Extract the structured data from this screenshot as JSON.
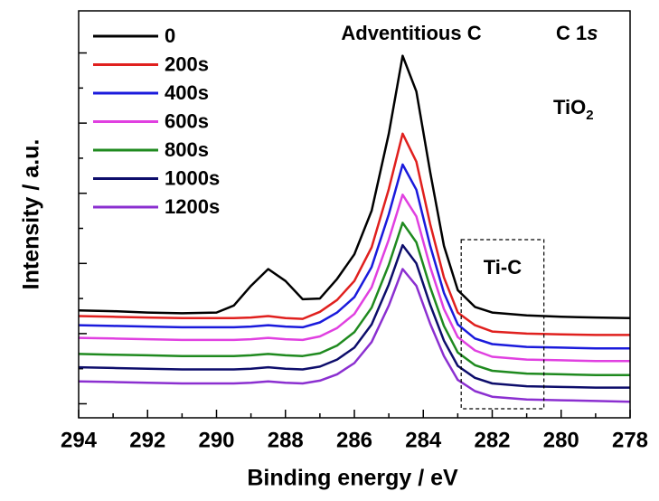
{
  "chart_data": {
    "type": "line",
    "xlabel": "Binding energy / eV",
    "ylabel": "Intensity / a.u.",
    "xlim": [
      294,
      278
    ],
    "xticks": [
      294,
      292,
      290,
      288,
      286,
      284,
      282,
      280,
      278
    ],
    "xminor": [
      293,
      291,
      289,
      287,
      285,
      283,
      281,
      279
    ],
    "ylim": [
      -0.2,
      5.6
    ],
    "yticks": [
      0,
      1,
      2,
      3,
      4,
      5
    ],
    "yminor": [
      0.5,
      1.5,
      2.5,
      3.5,
      4.5
    ],
    "x": [
      294,
      293,
      292,
      291,
      290,
      289.5,
      289,
      288.5,
      288,
      287.5,
      287,
      286.5,
      286,
      285.5,
      285,
      284.6,
      284.2,
      283.8,
      283.4,
      283,
      282.5,
      282,
      281,
      280,
      279,
      278
    ],
    "series": [
      {
        "name": "0",
        "color": "#000000",
        "values": [
          1.33,
          1.32,
          1.3,
          1.29,
          1.3,
          1.4,
          1.68,
          1.92,
          1.75,
          1.49,
          1.5,
          1.78,
          2.13,
          2.75,
          3.85,
          4.96,
          4.45,
          3.3,
          2.25,
          1.62,
          1.38,
          1.3,
          1.26,
          1.24,
          1.23,
          1.22
        ]
      },
      {
        "name": "200s",
        "color": "#e0201e",
        "values": [
          1.25,
          1.24,
          1.23,
          1.22,
          1.22,
          1.22,
          1.23,
          1.25,
          1.22,
          1.21,
          1.31,
          1.48,
          1.75,
          2.23,
          3.06,
          3.85,
          3.45,
          2.56,
          1.8,
          1.3,
          1.12,
          1.03,
          1.0,
          0.99,
          0.98,
          0.98
        ]
      },
      {
        "name": "400s",
        "color": "#1a1adc",
        "values": [
          1.12,
          1.11,
          1.1,
          1.09,
          1.09,
          1.09,
          1.1,
          1.12,
          1.1,
          1.09,
          1.16,
          1.3,
          1.52,
          1.95,
          2.7,
          3.41,
          3.05,
          2.25,
          1.58,
          1.13,
          0.93,
          0.85,
          0.81,
          0.8,
          0.79,
          0.79
        ]
      },
      {
        "name": "600s",
        "color": "#e040e0",
        "values": [
          0.94,
          0.93,
          0.92,
          0.91,
          0.91,
          0.91,
          0.92,
          0.94,
          0.92,
          0.91,
          0.96,
          1.08,
          1.28,
          1.66,
          2.34,
          2.98,
          2.67,
          1.95,
          1.35,
          0.95,
          0.76,
          0.67,
          0.63,
          0.62,
          0.61,
          0.61
        ]
      },
      {
        "name": "800s",
        "color": "#1f8a1f",
        "values": [
          0.71,
          0.7,
          0.69,
          0.68,
          0.68,
          0.68,
          0.69,
          0.71,
          0.69,
          0.68,
          0.72,
          0.83,
          1.02,
          1.37,
          1.98,
          2.58,
          2.3,
          1.66,
          1.11,
          0.73,
          0.55,
          0.47,
          0.43,
          0.42,
          0.41,
          0.41
        ]
      },
      {
        "name": "1000s",
        "color": "#0d0d6b",
        "values": [
          0.52,
          0.51,
          0.5,
          0.49,
          0.49,
          0.49,
          0.5,
          0.52,
          0.5,
          0.49,
          0.53,
          0.63,
          0.8,
          1.13,
          1.7,
          2.26,
          2.0,
          1.41,
          0.9,
          0.54,
          0.37,
          0.29,
          0.25,
          0.24,
          0.23,
          0.23
        ]
      },
      {
        "name": "1200s",
        "color": "#8b2fd0",
        "values": [
          0.32,
          0.31,
          0.3,
          0.29,
          0.29,
          0.29,
          0.3,
          0.32,
          0.3,
          0.29,
          0.33,
          0.42,
          0.58,
          0.88,
          1.4,
          1.92,
          1.68,
          1.14,
          0.68,
          0.34,
          0.18,
          0.1,
          0.06,
          0.05,
          0.04,
          0.03
        ]
      }
    ],
    "annotations": [
      {
        "text": "Adventitious C"
      },
      {
        "parts": [
          "C 1",
          "s"
        ]
      },
      {
        "parts": [
          "TiO",
          "2"
        ]
      },
      {
        "text": "Ti-C",
        "xrange": [
          282.9,
          280.5
        ]
      }
    ]
  }
}
